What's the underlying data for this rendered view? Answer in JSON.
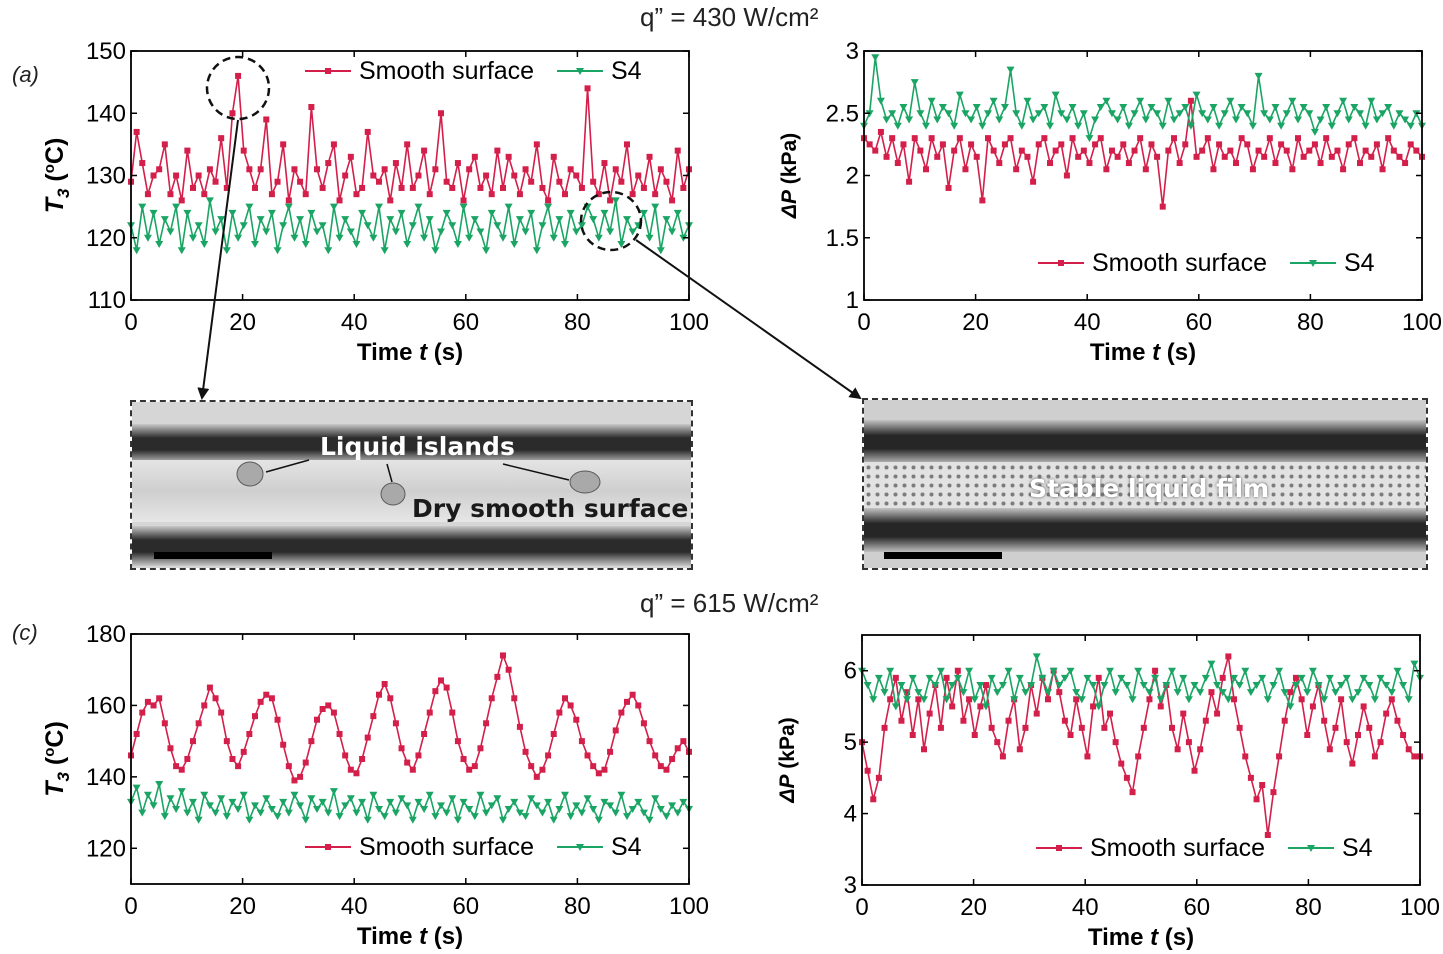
{
  "headings": {
    "top": "q” = 430 W/cm²",
    "bottom": "q” = 615 W/cm²"
  },
  "panel_tags": {
    "a": "(a)",
    "c": "(c)"
  },
  "photos": {
    "left": {
      "label_top": "Liquid islands",
      "label_bottom": "Dry smooth surface"
    },
    "right": {
      "label": "Stable liquid film"
    }
  },
  "colors": {
    "smooth": "#d31f4a",
    "s4": "#1aa564",
    "axis": "#000000"
  },
  "chart_data": [
    {
      "id": "a-left",
      "type": "line",
      "xlabel": "Time t (s)",
      "ylabel": "T3 (oC)",
      "xlim": [
        0,
        100
      ],
      "ylim": [
        110,
        150
      ],
      "xticks": [
        "0",
        "20",
        "40",
        "60",
        "80",
        "100"
      ],
      "yticks": [
        "110",
        "120",
        "130",
        "140",
        "150"
      ],
      "legend_position": "top-right",
      "series": [
        {
          "name": "Smooth surface",
          "color": "#d31f4a",
          "marker": "square",
          "values": [
            129,
            137,
            132,
            127,
            130,
            131,
            135,
            127,
            130,
            126,
            134,
            128,
            130,
            127,
            131,
            129,
            136,
            128,
            140,
            146,
            134,
            131,
            128,
            131,
            139,
            127,
            129,
            135,
            126,
            131,
            129,
            127,
            141,
            131,
            128,
            132,
            135,
            126,
            130,
            133,
            127,
            128,
            137,
            130,
            129,
            131,
            126,
            132,
            128,
            135,
            128,
            130,
            134,
            127,
            131,
            140,
            129,
            128,
            132,
            126,
            131,
            133,
            128,
            130,
            127,
            134,
            128,
            133,
            130,
            127,
            131,
            129,
            135,
            128,
            126,
            133,
            129,
            127,
            131,
            130,
            128,
            144,
            129,
            127,
            132,
            126,
            131,
            129,
            135,
            127,
            130,
            128,
            133,
            127,
            131,
            129,
            126,
            134,
            128,
            131
          ]
        },
        {
          "name": "S4",
          "color": "#1aa564",
          "marker": "triangle-down",
          "values": [
            122,
            118,
            125,
            120,
            124,
            119,
            123,
            121,
            125,
            118,
            124,
            120,
            122,
            119,
            126,
            121,
            123,
            118,
            124,
            120,
            122,
            125,
            119,
            123,
            121,
            124,
            118,
            122,
            125,
            120,
            123,
            119,
            124,
            121,
            122,
            118,
            125,
            120,
            123,
            121,
            119,
            124,
            122,
            120,
            125,
            118,
            123,
            121,
            124,
            119,
            122,
            125,
            120,
            123,
            118,
            121,
            124,
            122,
            119,
            125,
            120,
            123,
            121,
            118,
            124,
            122,
            120,
            125,
            119,
            123,
            121,
            124,
            118,
            122,
            125,
            120,
            123,
            119,
            124,
            121,
            122,
            125,
            123,
            120,
            124,
            121,
            126,
            119,
            123,
            121,
            122,
            124,
            120,
            125,
            118,
            123,
            121,
            124,
            120,
            122
          ]
        }
      ]
    },
    {
      "id": "a-right",
      "type": "line",
      "xlabel": "Time t (s)",
      "ylabel": "ΔP (kPa)",
      "xlim": [
        0,
        100
      ],
      "ylim": [
        1,
        3
      ],
      "xticks": [
        "0",
        "20",
        "40",
        "60",
        "80",
        "100"
      ],
      "yticks": [
        "1",
        "1.5",
        "2",
        "2.5",
        "3"
      ],
      "legend_position": "bottom-right",
      "series": [
        {
          "name": "Smooth surface",
          "color": "#d31f4a",
          "marker": "square",
          "values": [
            2.3,
            2.25,
            2.2,
            2.35,
            2.15,
            2.3,
            2.1,
            2.25,
            1.95,
            2.3,
            2.2,
            2.05,
            2.3,
            2.15,
            2.25,
            1.9,
            2.2,
            2.3,
            2.05,
            2.25,
            2.15,
            1.8,
            2.3,
            2.2,
            2.1,
            2.25,
            2.3,
            2.05,
            2.2,
            2.15,
            1.95,
            2.25,
            2.3,
            2.1,
            2.2,
            2.25,
            2.0,
            2.3,
            2.15,
            2.2,
            2.1,
            2.25,
            2.3,
            2.05,
            2.2,
            2.15,
            2.25,
            2.1,
            2.2,
            2.3,
            2.05,
            2.25,
            2.15,
            1.75,
            2.2,
            2.3,
            2.1,
            2.25,
            2.6,
            2.15,
            2.2,
            2.3,
            2.05,
            2.25,
            2.15,
            2.2,
            2.1,
            2.3,
            2.25,
            2.05,
            2.2,
            2.15,
            2.3,
            2.1,
            2.25,
            2.2,
            2.05,
            2.3,
            2.15,
            2.2,
            2.25,
            2.1,
            2.3,
            2.15,
            2.2,
            2.05,
            2.25,
            2.3,
            2.1,
            2.2,
            2.15,
            2.25,
            2.05,
            2.3,
            2.2,
            2.15,
            2.1,
            2.25,
            2.2,
            2.15
          ]
        },
        {
          "name": "S4",
          "color": "#1aa564",
          "marker": "triangle-down",
          "values": [
            2.4,
            2.5,
            2.95,
            2.6,
            2.45,
            2.5,
            2.4,
            2.55,
            2.45,
            2.75,
            2.5,
            2.4,
            2.6,
            2.45,
            2.55,
            2.5,
            2.4,
            2.65,
            2.5,
            2.45,
            2.55,
            2.4,
            2.5,
            2.6,
            2.45,
            2.55,
            2.85,
            2.5,
            2.4,
            2.6,
            2.45,
            2.5,
            2.55,
            2.4,
            2.65,
            2.5,
            2.45,
            2.55,
            2.4,
            2.5,
            2.3,
            2.45,
            2.55,
            2.6,
            2.5,
            2.45,
            2.55,
            2.4,
            2.5,
            2.6,
            2.45,
            2.55,
            2.5,
            2.4,
            2.6,
            2.45,
            2.5,
            2.55,
            2.4,
            2.65,
            2.5,
            2.45,
            2.55,
            2.4,
            2.5,
            2.6,
            2.45,
            2.55,
            2.5,
            2.4,
            2.8,
            2.5,
            2.45,
            2.55,
            2.4,
            2.5,
            2.6,
            2.45,
            2.55,
            2.5,
            2.35,
            2.45,
            2.55,
            2.4,
            2.5,
            2.6,
            2.45,
            2.55,
            2.5,
            2.4,
            2.6,
            2.45,
            2.5,
            2.55,
            2.4,
            2.5,
            2.45,
            2.4,
            2.5,
            2.4
          ]
        }
      ]
    },
    {
      "id": "c-left",
      "type": "line",
      "xlabel": "Time t (s)",
      "ylabel": "T3 (oC)",
      "xlim": [
        0,
        100
      ],
      "ylim": [
        110,
        180
      ],
      "xticks": [
        "0",
        "20",
        "40",
        "60",
        "80",
        "100"
      ],
      "yticks": [
        "120",
        "140",
        "160",
        "180"
      ],
      "legend_position": "bottom-right",
      "series": [
        {
          "name": "Smooth surface",
          "color": "#d31f4a",
          "marker": "square",
          "values": [
            146,
            152,
            158,
            161,
            160,
            162,
            155,
            148,
            143,
            142,
            145,
            150,
            155,
            160,
            165,
            162,
            158,
            150,
            145,
            143,
            147,
            152,
            157,
            161,
            163,
            162,
            156,
            149,
            143,
            139,
            140,
            144,
            150,
            156,
            159,
            160,
            158,
            152,
            146,
            142,
            141,
            145,
            151,
            157,
            163,
            166,
            162,
            155,
            148,
            144,
            142,
            146,
            152,
            158,
            164,
            167,
            165,
            158,
            150,
            145,
            142,
            143,
            148,
            155,
            162,
            168,
            174,
            170,
            162,
            154,
            147,
            143,
            140,
            142,
            146,
            152,
            158,
            162,
            160,
            156,
            150,
            146,
            143,
            141,
            142,
            147,
            153,
            158,
            161,
            163,
            160,
            155,
            150,
            146,
            143,
            142,
            145,
            148,
            150,
            147
          ]
        },
        {
          "name": "S4",
          "color": "#1aa564",
          "marker": "triangle-down",
          "values": [
            133,
            137,
            130,
            135,
            132,
            138,
            129,
            134,
            131,
            136,
            130,
            133,
            128,
            135,
            132,
            130,
            134,
            129,
            133,
            131,
            135,
            128,
            132,
            130,
            134,
            131,
            129,
            133,
            130,
            135,
            132,
            128,
            134,
            131,
            133,
            130,
            136,
            129,
            132,
            134,
            130,
            133,
            128,
            135,
            131,
            129,
            133,
            130,
            134,
            132,
            128,
            133,
            131,
            135,
            129,
            132,
            130,
            134,
            128,
            133,
            131,
            129,
            135,
            130,
            132,
            134,
            128,
            131,
            133,
            130,
            129,
            134,
            132,
            130,
            133,
            128,
            131,
            135,
            129,
            132,
            130,
            134,
            131,
            128,
            133,
            132,
            130,
            135,
            129,
            131,
            133,
            130,
            128,
            134,
            131,
            129,
            132,
            130,
            133,
            131
          ]
        }
      ]
    },
    {
      "id": "c-right",
      "type": "line",
      "xlabel": "Time t (s)",
      "ylabel": "ΔP (kPa)",
      "xlim": [
        0,
        100
      ],
      "ylim": [
        3,
        6.5
      ],
      "xticks": [
        "0",
        "20",
        "40",
        "60",
        "80",
        "100"
      ],
      "yticks": [
        "3",
        "4",
        "5",
        "6"
      ],
      "legend_position": "bottom-right",
      "series": [
        {
          "name": "Smooth surface",
          "color": "#d31f4a",
          "marker": "square",
          "values": [
            5.0,
            4.6,
            4.2,
            4.5,
            5.2,
            5.6,
            5.9,
            5.3,
            5.7,
            5.1,
            5.6,
            4.9,
            5.4,
            5.8,
            5.2,
            5.9,
            5.5,
            6.0,
            5.3,
            5.6,
            5.1,
            5.5,
            5.8,
            5.2,
            5.0,
            4.8,
            5.3,
            5.6,
            4.9,
            5.2,
            5.8,
            5.4,
            5.9,
            5.6,
            6.0,
            5.7,
            5.3,
            5.1,
            5.6,
            5.2,
            4.8,
            5.5,
            5.9,
            5.2,
            5.4,
            5.0,
            4.7,
            4.5,
            4.3,
            4.8,
            5.2,
            5.6,
            6.0,
            5.5,
            5.8,
            5.2,
            4.9,
            5.4,
            5.0,
            4.6,
            4.9,
            5.3,
            5.7,
            5.4,
            5.9,
            6.2,
            5.6,
            5.2,
            4.8,
            4.5,
            4.2,
            4.4,
            3.7,
            4.3,
            4.8,
            5.3,
            5.7,
            5.9,
            5.6,
            5.1,
            5.5,
            5.8,
            5.3,
            4.9,
            5.2,
            5.6,
            5.0,
            4.7,
            5.1,
            5.5,
            5.2,
            4.8,
            5.0,
            5.4,
            5.6,
            5.3,
            5.1,
            4.9,
            4.8,
            4.8
          ]
        },
        {
          "name": "S4",
          "color": "#1aa564",
          "marker": "triangle-down",
          "values": [
            6.0,
            5.8,
            5.6,
            5.9,
            5.7,
            6.0,
            5.5,
            5.8,
            5.6,
            5.9,
            5.7,
            5.6,
            5.9,
            5.8,
            6.0,
            5.6,
            5.8,
            5.9,
            5.7,
            6.0,
            5.6,
            5.8,
            5.5,
            5.9,
            5.7,
            5.8,
            6.0,
            5.6,
            5.9,
            5.7,
            5.8,
            6.2,
            5.9,
            5.7,
            6.0,
            5.8,
            5.9,
            6.0,
            5.7,
            5.6,
            5.9,
            5.8,
            5.5,
            5.8,
            6.0,
            5.7,
            5.9,
            5.8,
            5.6,
            6.0,
            5.8,
            5.7,
            5.9,
            5.6,
            5.8,
            6.0,
            5.7,
            5.9,
            5.6,
            5.8,
            5.7,
            5.9,
            6.1,
            5.8,
            5.7,
            5.6,
            5.9,
            5.8,
            6.0,
            5.7,
            5.8,
            5.9,
            5.6,
            5.8,
            6.0,
            5.7,
            5.5,
            5.8,
            5.9,
            5.7,
            6.0,
            5.8,
            5.6,
            5.9,
            5.7,
            5.8,
            5.9,
            5.6,
            5.7,
            5.9,
            5.8,
            5.6,
            5.9,
            5.8,
            5.7,
            6.0,
            5.8,
            5.6,
            6.1,
            5.9
          ]
        }
      ]
    }
  ]
}
